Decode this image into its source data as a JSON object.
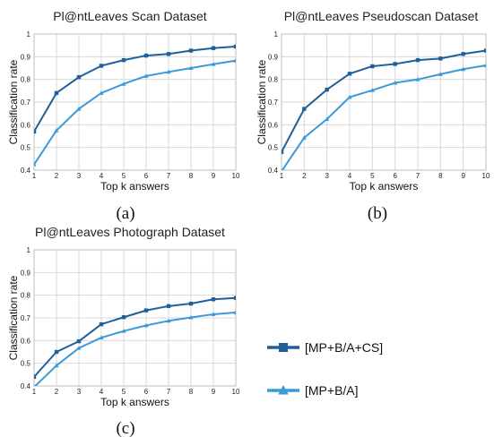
{
  "chart_data": [
    {
      "type": "line",
      "title": "Pl@ntLeaves Scan Dataset",
      "xlabel": "Top k answers",
      "ylabel": "Classification rate",
      "caption": "(a)",
      "x": [
        1,
        2,
        3,
        4,
        5,
        6,
        7,
        8,
        9,
        10
      ],
      "xlim": [
        1,
        10
      ],
      "ylim": [
        0.4,
        1
      ],
      "xticks": [
        "1",
        "2",
        "3",
        "4",
        "5",
        "6",
        "7",
        "8",
        "9",
        "10"
      ],
      "yticks": [
        "0.4",
        "0.5",
        "0.6",
        "0.7",
        "0.8",
        "0.9",
        "1"
      ],
      "grid": true,
      "series": [
        {
          "name": "[MP+B/A+CS]",
          "color": "#1f5f9a",
          "marker": "square",
          "values": [
            0.57,
            0.74,
            0.81,
            0.86,
            0.885,
            0.905,
            0.912,
            0.927,
            0.938,
            0.945
          ]
        },
        {
          "name": "[MP+B/A]",
          "color": "#3a9ad9",
          "marker": "triangle",
          "values": [
            0.425,
            0.575,
            0.67,
            0.74,
            0.78,
            0.815,
            0.833,
            0.85,
            0.867,
            0.883
          ]
        }
      ]
    },
    {
      "type": "line",
      "title": "Pl@ntLeaves Pseudoscan Dataset",
      "xlabel": "Top k answers",
      "ylabel": "Classification rate",
      "caption": "(b)",
      "x": [
        1,
        2,
        3,
        4,
        5,
        6,
        7,
        8,
        9,
        10
      ],
      "xlim": [
        1,
        10
      ],
      "ylim": [
        0.4,
        1
      ],
      "xticks": [
        "1",
        "2",
        "3",
        "4",
        "5",
        "6",
        "7",
        "8",
        "9",
        "10"
      ],
      "yticks": [
        "0.4",
        "0.5",
        "0.6",
        "0.7",
        "0.8",
        "0.9",
        "1"
      ],
      "grid": true,
      "series": [
        {
          "name": "[MP+B/A+CS]",
          "color": "#1f5f9a",
          "marker": "square",
          "values": [
            0.48,
            0.67,
            0.755,
            0.825,
            0.858,
            0.868,
            0.885,
            0.892,
            0.912,
            0.927
          ]
        },
        {
          "name": "[MP+B/A]",
          "color": "#3a9ad9",
          "marker": "triangle",
          "values": [
            0.395,
            0.543,
            0.625,
            0.722,
            0.752,
            0.785,
            0.8,
            0.823,
            0.845,
            0.862
          ]
        }
      ]
    },
    {
      "type": "line",
      "title": "Pl@ntLeaves Photograph Dataset",
      "xlabel": "Top k answers",
      "ylabel": "Classification rate",
      "caption": "(c)",
      "x": [
        1,
        2,
        3,
        4,
        5,
        6,
        7,
        8,
        9,
        10
      ],
      "xlim": [
        1,
        10
      ],
      "ylim": [
        0.4,
        1
      ],
      "xticks": [
        "1",
        "2",
        "3",
        "4",
        "5",
        "6",
        "7",
        "8",
        "9",
        "10"
      ],
      "yticks": [
        "0.4",
        "0.5",
        "0.6",
        "0.7",
        "0.8",
        "0.9",
        "1"
      ],
      "grid": true,
      "series": [
        {
          "name": "[MP+B/A+CS]",
          "color": "#1f5f9a",
          "marker": "square",
          "values": [
            0.44,
            0.55,
            0.597,
            0.672,
            0.703,
            0.733,
            0.752,
            0.763,
            0.782,
            0.788
          ]
        },
        {
          "name": "[MP+B/A]",
          "color": "#3a9ad9",
          "marker": "triangle",
          "values": [
            0.395,
            0.49,
            0.567,
            0.613,
            0.642,
            0.667,
            0.687,
            0.702,
            0.716,
            0.724
          ]
        }
      ]
    }
  ],
  "legend": {
    "placement": "bottom-right",
    "items": [
      {
        "label": "[MP+B/A+CS]",
        "color": "#1f5f9a",
        "marker": "square"
      },
      {
        "label": "[MP+B/A]",
        "color": "#3a9ad9",
        "marker": "triangle"
      }
    ]
  }
}
